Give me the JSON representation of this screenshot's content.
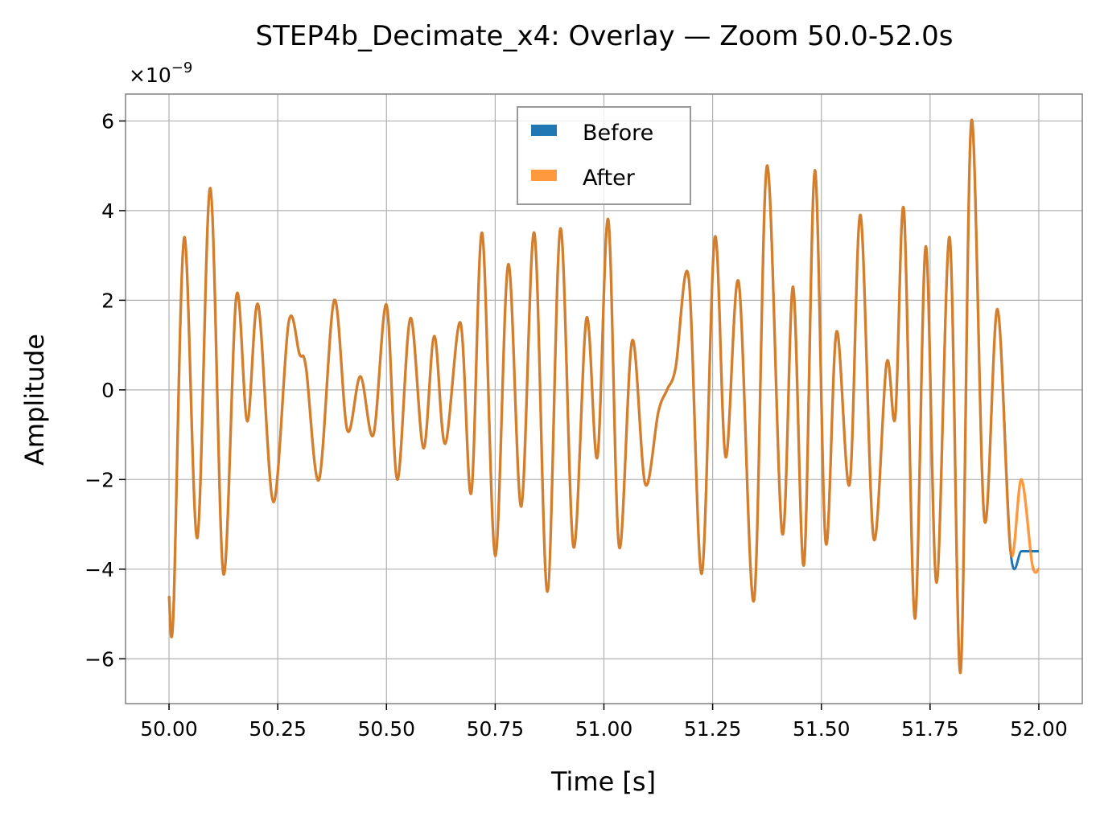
{
  "chart_data": {
    "type": "line",
    "title": "STEP4b_Decimate_x4: Overlay — Zoom 50.0-52.0s",
    "xlabel": "Time [s]",
    "ylabel": "Amplitude",
    "y_offset_label": "×10",
    "y_offset_exponent": "−9",
    "xlim": [
      49.9,
      52.1
    ],
    "ylim": [
      -7.0,
      6.6
    ],
    "xticks": [
      50.0,
      50.25,
      50.5,
      50.75,
      51.0,
      51.25,
      51.5,
      51.75,
      52.0
    ],
    "xtick_labels": [
      "50.00",
      "50.25",
      "50.50",
      "50.75",
      "51.00",
      "51.25",
      "51.50",
      "51.75",
      "52.00"
    ],
    "yticks": [
      -6,
      -4,
      -2,
      0,
      2,
      4,
      6
    ],
    "ytick_labels": [
      "−6",
      "−4",
      "−2",
      "0",
      "2",
      "4",
      "6"
    ],
    "grid": true,
    "legend_position": "top-center",
    "series": [
      {
        "name": "Before",
        "color": "#1f77b4",
        "x": [
          50.0,
          50.01,
          50.035,
          50.065,
          50.095,
          50.125,
          50.155,
          50.18,
          50.205,
          50.24,
          50.275,
          50.3,
          50.315,
          50.345,
          50.38,
          50.41,
          50.44,
          50.47,
          50.5,
          50.525,
          50.555,
          50.585,
          50.61,
          50.635,
          50.67,
          50.695,
          50.72,
          50.75,
          50.78,
          50.81,
          50.84,
          50.87,
          50.9,
          50.93,
          50.96,
          50.985,
          51.01,
          51.035,
          51.065,
          51.095,
          51.125,
          51.145,
          51.165,
          51.195,
          51.225,
          51.255,
          51.28,
          51.31,
          51.345,
          51.375,
          51.41,
          51.435,
          51.46,
          51.485,
          51.51,
          51.535,
          51.565,
          51.59,
          51.62,
          51.65,
          51.67,
          51.69,
          51.715,
          51.74,
          51.765,
          51.795,
          51.82,
          51.845,
          51.875,
          51.905,
          51.935,
          51.96,
          51.985,
          52.0
        ],
        "y": [
          -4.6,
          -5.0,
          3.4,
          -3.3,
          4.5,
          -4.1,
          2.1,
          -0.7,
          1.9,
          -2.5,
          1.5,
          0.8,
          0.5,
          -2.0,
          2.0,
          -0.9,
          0.3,
          -1.0,
          1.9,
          -2.0,
          1.6,
          -1.3,
          1.2,
          -1.2,
          1.5,
          -2.3,
          3.5,
          -3.7,
          2.8,
          -2.6,
          3.5,
          -4.5,
          3.6,
          -3.5,
          1.6,
          -1.5,
          3.8,
          -3.5,
          1.1,
          -2.1,
          -0.5,
          0.0,
          0.5,
          2.5,
          -4.1,
          3.4,
          -1.5,
          2.4,
          -4.7,
          5.0,
          -3.2,
          2.3,
          -3.9,
          4.9,
          -3.4,
          1.3,
          -2.1,
          3.9,
          -3.3,
          0.6,
          -0.6,
          4.0,
          -5.1,
          3.2,
          -4.3,
          3.4,
          -6.3,
          6.0,
          -2.9,
          1.8,
          -3.6,
          -3.6,
          -3.6,
          -3.6
        ]
      },
      {
        "name": "After",
        "color": "#ff7f0e",
        "x": [
          50.0,
          50.01,
          50.035,
          50.065,
          50.095,
          50.125,
          50.155,
          50.18,
          50.205,
          50.24,
          50.275,
          50.3,
          50.315,
          50.345,
          50.38,
          50.41,
          50.44,
          50.47,
          50.5,
          50.525,
          50.555,
          50.585,
          50.61,
          50.635,
          50.67,
          50.695,
          50.72,
          50.75,
          50.78,
          50.81,
          50.84,
          50.87,
          50.9,
          50.93,
          50.96,
          50.985,
          51.01,
          51.035,
          51.065,
          51.095,
          51.125,
          51.145,
          51.165,
          51.195,
          51.225,
          51.255,
          51.28,
          51.31,
          51.345,
          51.375,
          51.41,
          51.435,
          51.46,
          51.485,
          51.51,
          51.535,
          51.565,
          51.59,
          51.62,
          51.65,
          51.67,
          51.69,
          51.715,
          51.74,
          51.765,
          51.795,
          51.82,
          51.845,
          51.875,
          51.905,
          51.935,
          51.96,
          51.985,
          52.0
        ],
        "y": [
          -4.6,
          -5.0,
          3.4,
          -3.3,
          4.5,
          -4.1,
          2.1,
          -0.7,
          1.9,
          -2.5,
          1.5,
          0.8,
          0.5,
          -2.0,
          2.0,
          -0.9,
          0.3,
          -1.0,
          1.9,
          -2.0,
          1.6,
          -1.3,
          1.2,
          -1.2,
          1.5,
          -2.3,
          3.5,
          -3.7,
          2.8,
          -2.6,
          3.5,
          -4.5,
          3.6,
          -3.5,
          1.6,
          -1.5,
          3.8,
          -3.5,
          1.1,
          -2.1,
          -0.5,
          0.0,
          0.5,
          2.5,
          -4.1,
          3.4,
          -1.5,
          2.4,
          -4.7,
          5.0,
          -3.2,
          2.3,
          -3.9,
          4.9,
          -3.4,
          1.3,
          -2.1,
          3.9,
          -3.3,
          0.6,
          -0.6,
          4.0,
          -5.1,
          3.2,
          -4.3,
          3.4,
          -6.3,
          6.0,
          -2.9,
          1.8,
          -3.6,
          -2.0,
          -3.9,
          -4.0
        ]
      }
    ]
  }
}
